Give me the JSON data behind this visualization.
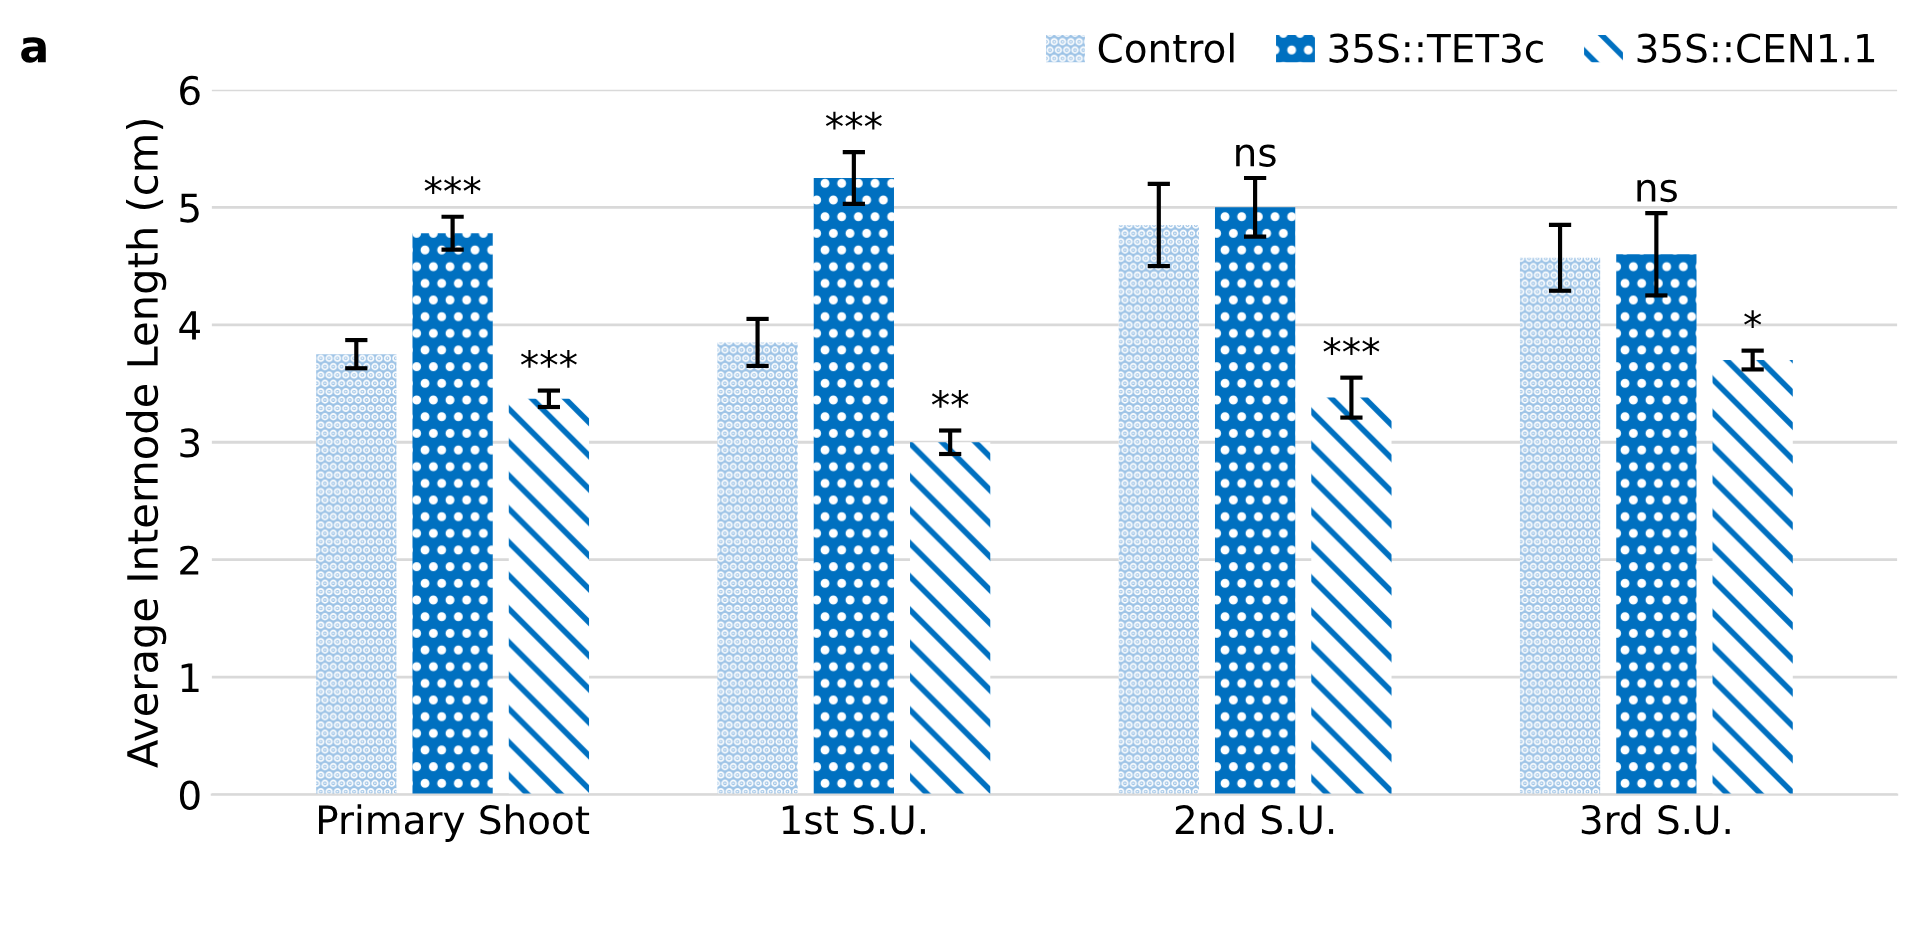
{
  "chart_data": {
    "type": "bar",
    "ylabel": "Average Internode Length (cm)",
    "categories": [
      "Primary Shoot",
      "1st S.U.",
      "2nd S.U.",
      "3rd S.U."
    ],
    "series": [
      {
        "name": "Control",
        "color": "#9dc3e6",
        "values": [
          3.75,
          3.85,
          4.85,
          4.57
        ],
        "errors": [
          0.12,
          0.2,
          0.35,
          0.28
        ],
        "value_labels": [
          null,
          null,
          null,
          null
        ]
      },
      {
        "name": "35S::TET3c",
        "color": "#0070c0",
        "values": [
          4.78,
          5.25,
          5.0,
          4.6
        ],
        "errors": [
          0.14,
          0.22,
          0.25,
          0.35
        ],
        "value_labels": [
          "***",
          "***",
          "ns",
          "ns"
        ]
      },
      {
        "name": "35S::CEN1.1",
        "color": "#0070c0",
        "values": [
          3.37,
          3.0,
          3.38,
          3.7
        ],
        "errors": [
          0.07,
          0.1,
          0.17,
          0.08
        ],
        "value_labels": [
          "***",
          "**",
          "***",
          "*"
        ]
      }
    ],
    "ylim": [
      0,
      6
    ],
    "yticks": [
      0,
      1,
      2,
      3,
      4,
      5,
      6
    ],
    "grid": "y",
    "legend": "top right",
    "annotations": [
      "a"
    ]
  }
}
